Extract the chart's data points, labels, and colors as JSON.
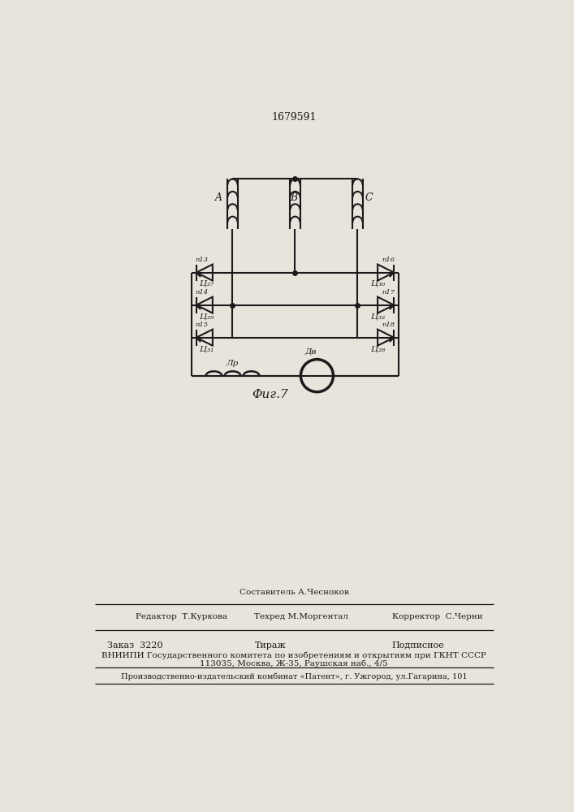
{
  "title": "1679591",
  "fig_caption": "Φиг.7",
  "background_color": "#e8e4dc",
  "line_color": "#1a1a1a",
  "text_color": "#1a1a1a",
  "footer_sestavitel": "Составитель А.Чесноков",
  "footer_tehred": "Техред М.Моргентал",
  "footer_redaktor": "Редактор  Т.Куркова",
  "footer_korrektor": "Корректор  С.Черни",
  "footer_zakaz": "Заказ  3220",
  "footer_tirazh": "Тираж",
  "footer_podpisnoe": "Подписное",
  "footer_vniiipi": "ВНИИПИ Государственного комитета по изобретениям и открытиям при ГКНТ СССР",
  "footer_addr": "113035, Москва, Ж-35, Раушская наб., 4/5",
  "footer_patent": "Производственно-издательский комбинат «Патент», г. Ужгород, ул.Гагарина, 101"
}
